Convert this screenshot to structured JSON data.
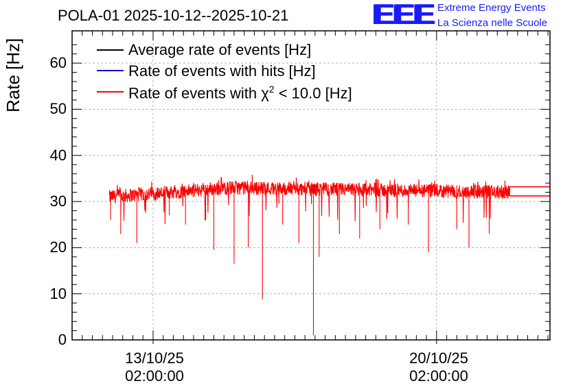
{
  "chart_data": {
    "type": "line",
    "title": "POLA-01 2025-10-12--2025-10-21",
    "ylabel": "Rate [Hz]",
    "xlabel": "",
    "ylim": [
      0,
      67
    ],
    "yticks": [
      0,
      10,
      20,
      30,
      40,
      50,
      60
    ],
    "xticks": [
      {
        "date": "13/10/25",
        "time": "02:00:00",
        "day": 1.0
      },
      {
        "date": "20/10/25",
        "time": "02:00:00",
        "day": 8.0
      }
    ],
    "xlim_days": [
      -1.0,
      10.8
    ],
    "data_range_days": [
      -0.08,
      9.8
    ],
    "grid": true,
    "legend": [
      {
        "label": "Average rate of events [Hz]",
        "color": "#000000"
      },
      {
        "label": "Rate of events with hits [Hz]",
        "color": "#0000cc"
      },
      {
        "label": "Rate of events with χ² < 10.0 [Hz]",
        "label_pre": "Rate of events with ",
        "label_chi": "χ",
        "label_sup": "2",
        "label_post": " < 10.0 [Hz]",
        "color": "#ff0000"
      }
    ],
    "series": [
      {
        "name": "Rate of events with χ² < 10.0 [Hz]",
        "color": "#ff0000",
        "baseline_start": 31.0,
        "baseline_peak": 33.0,
        "baseline_end": 32.0,
        "band_half_width": 1.5,
        "dips": [
          {
            "day": -0.05,
            "value": 26.0
          },
          {
            "day": 0.2,
            "value": 23.0
          },
          {
            "day": 0.6,
            "value": 21.0
          },
          {
            "day": 1.4,
            "value": 27.0
          },
          {
            "day": 1.8,
            "value": 25.0
          },
          {
            "day": 2.3,
            "value": 26.0
          },
          {
            "day": 2.5,
            "value": 19.5
          },
          {
            "day": 3.0,
            "value": 16.5
          },
          {
            "day": 3.35,
            "value": 20.0
          },
          {
            "day": 3.7,
            "value": 8.8
          },
          {
            "day": 4.2,
            "value": 25.0
          },
          {
            "day": 4.6,
            "value": 21.0
          },
          {
            "day": 4.96,
            "value": 1.0
          },
          {
            "day": 5.1,
            "value": 18.0
          },
          {
            "day": 5.6,
            "value": 23.0
          },
          {
            "day": 6.1,
            "value": 22.0
          },
          {
            "day": 6.6,
            "value": 24.0
          },
          {
            "day": 7.3,
            "value": 25.0
          },
          {
            "day": 7.8,
            "value": 19.0
          },
          {
            "day": 8.5,
            "value": 24.0
          },
          {
            "day": 8.8,
            "value": 20.0
          },
          {
            "day": 9.3,
            "value": 23.0
          }
        ],
        "tail_values": [
          33.2,
          31.2
        ]
      }
    ]
  }
}
